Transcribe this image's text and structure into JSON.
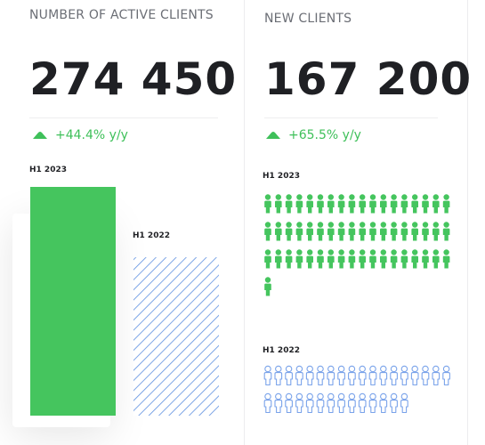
{
  "active_clients": {
    "title": "NUMBER OF ACTIVE CLIENTS",
    "value": "274 450",
    "growth": "+44.4% y/y"
  },
  "new_clients": {
    "title": "NEW CLIENTS",
    "value": "167 200",
    "growth": "+65.5% y/y"
  },
  "colors": {
    "accent_green": "#45c55e",
    "hatch_blue": "#5d8fe0",
    "outline_blue": "#7aa3ea"
  },
  "chart_data": [
    {
      "type": "bar",
      "categories": [
        "H1 2023",
        "H1 2022"
      ],
      "values": [
        274450,
        190000
      ],
      "styles": [
        "solid-green",
        "hatched-blue"
      ],
      "ylim": [
        0,
        274450
      ]
    },
    {
      "type": "pictogram",
      "icon": "person-icon",
      "categories": [
        "H1 2023",
        "H1 2022"
      ],
      "visible_icons": [
        55,
        32
      ],
      "styles": [
        "solid-green",
        "outline-blue"
      ]
    }
  ]
}
